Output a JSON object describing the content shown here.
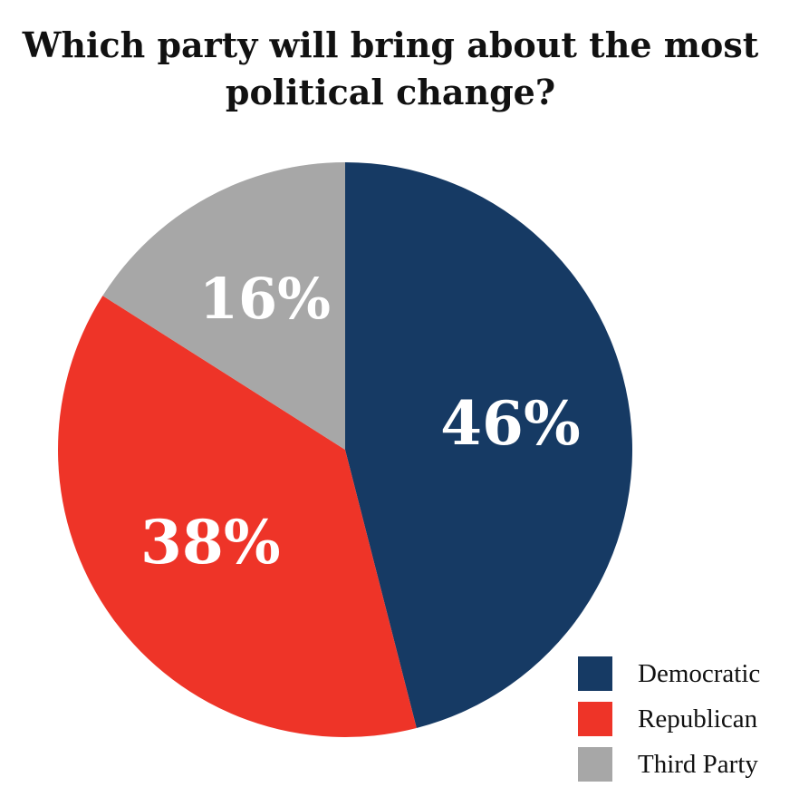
{
  "chart_data": {
    "type": "pie",
    "title": "Which party will bring about the most\npolitical change?",
    "slices": [
      {
        "label": "Democratic",
        "value": 46,
        "display": "46%",
        "color": "#163a64"
      },
      {
        "label": "Republican",
        "value": 38,
        "display": "38%",
        "color": "#ee3428"
      },
      {
        "label": "Third Party",
        "value": 16,
        "display": "16%",
        "color": "#a7a7a7"
      }
    ],
    "start": "12 o'clock",
    "direction": "clockwise",
    "legend_position": "bottom-right"
  }
}
